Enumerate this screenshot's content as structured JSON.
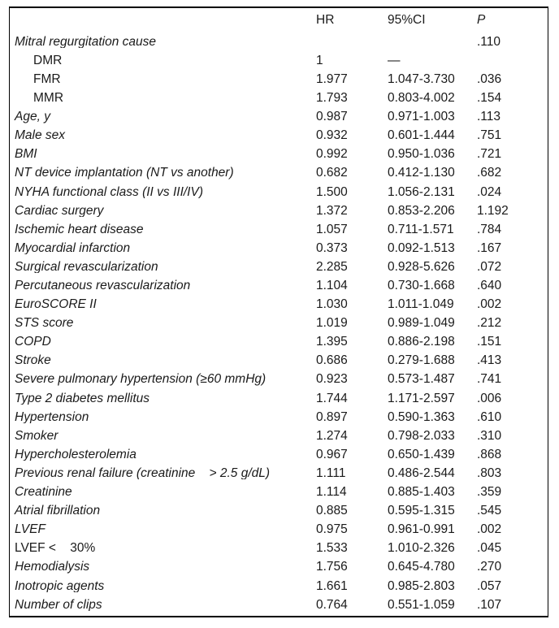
{
  "table": {
    "columns": {
      "hr": "HR",
      "ci": "95%CI",
      "p": "P"
    },
    "rows": [
      {
        "label": "Mitral regurgitation cause",
        "hr": "",
        "ci": "",
        "p": ".110",
        "italic": true,
        "indent": false
      },
      {
        "label": "DMR",
        "hr": "1",
        "ci": "—",
        "p": "",
        "italic": false,
        "indent": true
      },
      {
        "label": "FMR",
        "hr": "1.977",
        "ci": "1.047-3.730",
        "p": ".036",
        "italic": false,
        "indent": true
      },
      {
        "label": "MMR",
        "hr": "1.793",
        "ci": "0.803-4.002",
        "p": ".154",
        "italic": false,
        "indent": true
      },
      {
        "label": "Age, y",
        "hr": "0.987",
        "ci": "0.971-1.003",
        "p": ".113",
        "italic": true,
        "indent": false
      },
      {
        "label": "Male sex",
        "hr": "0.932",
        "ci": "0.601-1.444",
        "p": ".751",
        "italic": true,
        "indent": false
      },
      {
        "label": "BMI",
        "hr": "0.992",
        "ci": "0.950-1.036",
        "p": ".721",
        "italic": true,
        "indent": false
      },
      {
        "label": "NT device implantation (NT vs another)",
        "hr": "0.682",
        "ci": "0.412-1.130",
        "p": ".682",
        "italic": true,
        "indent": false
      },
      {
        "label": "NYHA functional class (II vs III/IV)",
        "hr": "1.500",
        "ci": "1.056-2.131",
        "p": ".024",
        "italic": true,
        "indent": false
      },
      {
        "label": "Cardiac surgery",
        "hr": "1.372",
        "ci": "0.853-2.206",
        "p": "1.192",
        "italic": true,
        "indent": false
      },
      {
        "label": "Ischemic heart disease",
        "hr": "1.057",
        "ci": "0.711-1.571",
        "p": ".784",
        "italic": true,
        "indent": false
      },
      {
        "label": "Myocardial infarction",
        "hr": "0.373",
        "ci": "0.092-1.513",
        "p": ".167",
        "italic": true,
        "indent": false
      },
      {
        "label": "Surgical revascularization",
        "hr": "2.285",
        "ci": "0.928-5.626",
        "p": ".072",
        "italic": true,
        "indent": false
      },
      {
        "label": "Percutaneous revascularization",
        "hr": "1.104",
        "ci": "0.730-1.668",
        "p": ".640",
        "italic": true,
        "indent": false
      },
      {
        "label": "EuroSCORE II",
        "hr": "1.030",
        "ci": "1.011-1.049",
        "p": ".002",
        "italic": true,
        "indent": false
      },
      {
        "label": "STS score",
        "hr": "1.019",
        "ci": "0.989-1.049",
        "p": ".212",
        "italic": true,
        "indent": false
      },
      {
        "label": "COPD",
        "hr": "1.395",
        "ci": "0.886-2.198",
        "p": ".151",
        "italic": true,
        "indent": false
      },
      {
        "label": "Stroke",
        "hr": "0.686",
        "ci": "0.279-1.688",
        "p": ".413",
        "italic": true,
        "indent": false
      },
      {
        "label": "Severe pulmonary hypertension (≥60 mmHg)",
        "hr": "0.923",
        "ci": "0.573-1.487",
        "p": ".741",
        "italic": true,
        "indent": false
      },
      {
        "label": "Type 2 diabetes mellitus",
        "hr": "1.744",
        "ci": "1.171-2.597",
        "p": ".006",
        "italic": true,
        "indent": false
      },
      {
        "label": "Hypertension",
        "hr": "0.897",
        "ci": "0.590-1.363",
        "p": ".610",
        "italic": true,
        "indent": false
      },
      {
        "label": "Smoker",
        "hr": "1.274",
        "ci": "0.798-2.033",
        "p": ".310",
        "italic": true,
        "indent": false
      },
      {
        "label": "Hypercholesterolemia",
        "hr": "0.967",
        "ci": "0.650-1.439",
        "p": ".868",
        "italic": true,
        "indent": false
      },
      {
        "label": "Previous renal failure (creatinine    > 2.5 g/dL)",
        "hr": "1.111",
        "ci": "0.486-2.544",
        "p": ".803",
        "italic": true,
        "indent": false
      },
      {
        "label": "Creatinine",
        "hr": "1.114",
        "ci": "0.885-1.403",
        "p": ".359",
        "italic": true,
        "indent": false
      },
      {
        "label": "Atrial fibrillation",
        "hr": "0.885",
        "ci": "0.595-1.315",
        "p": ".545",
        "italic": true,
        "indent": false
      },
      {
        "label": "LVEF",
        "hr": "0.975",
        "ci": "0.961-0.991",
        "p": ".002",
        "italic": true,
        "indent": false
      },
      {
        "label": "LVEF <    30%",
        "hr": "1.533",
        "ci": "1.010-2.326",
        "p": ".045",
        "italic": false,
        "indent": false
      },
      {
        "label": "Hemodialysis",
        "hr": "1.756",
        "ci": "0.645-4.780",
        "p": ".270",
        "italic": true,
        "indent": false
      },
      {
        "label": "Inotropic agents",
        "hr": "1.661",
        "ci": "0.985-2.803",
        "p": ".057",
        "italic": true,
        "indent": false
      },
      {
        "label": "Number of clips",
        "hr": "0.764",
        "ci": "0.551-1.059",
        "p": ".107",
        "italic": true,
        "indent": false
      }
    ]
  }
}
